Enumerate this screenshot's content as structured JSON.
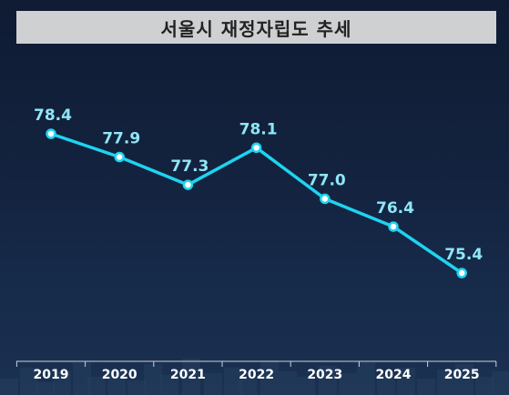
{
  "title": "서울시 재정자립도 추세",
  "colors": {
    "line": "#1fd3f0",
    "marker_fill": "#ffffff",
    "value_label": "#8fe6f8",
    "axis_label": "#ffffff",
    "axis_line": "#c9d1dc",
    "title_bg": "#cfd0d2",
    "title_text": "#222222"
  },
  "chart_data": {
    "type": "line",
    "title": "서울시 재정자립도 추세",
    "xlabel": "",
    "ylabel": "",
    "categories": [
      "2019",
      "2020",
      "2021",
      "2022",
      "2023",
      "2024",
      "2025"
    ],
    "series": [
      {
        "values": [
          78.4,
          77.9,
          77.3,
          78.1,
          77.0,
          76.4,
          75.4
        ]
      }
    ],
    "labels": [
      "78.4",
      "77.9",
      "77.3",
      "78.1",
      "77.0",
      "76.4",
      "75.4"
    ],
    "ylim": [
      75.4,
      78.4
    ],
    "grid": false,
    "legend": "none"
  }
}
